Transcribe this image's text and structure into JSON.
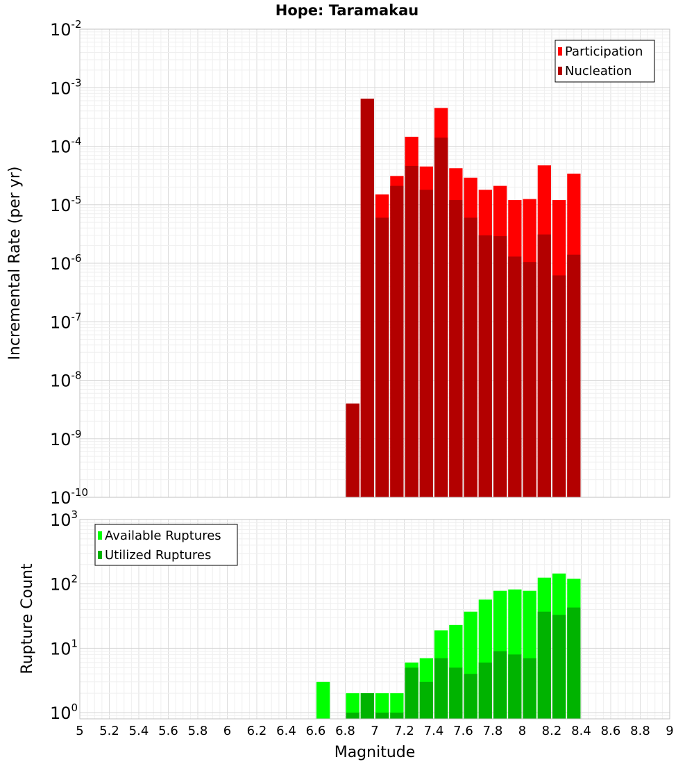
{
  "title": "Hope: Taramakau",
  "xlabel": "Magnitude",
  "x_ticks": [
    "5",
    "5.2",
    "5.4",
    "5.6",
    "5.8",
    "6",
    "6.2",
    "6.4",
    "6.6",
    "6.8",
    "7",
    "7.2",
    "7.4",
    "7.6",
    "7.8",
    "8",
    "8.2",
    "8.4",
    "8.6",
    "8.8",
    "9"
  ],
  "colors": {
    "participation": "#ff0000",
    "nucleation": "#b30000",
    "available": "#00ff00",
    "utilized": "#00b300"
  },
  "chart_data": [
    {
      "type": "bar",
      "ylabel": "Incremental Rate (per yr)",
      "yscale": "log",
      "xlim": [
        5,
        9
      ],
      "ylim": [
        1e-10,
        0.01
      ],
      "y_ticks": [
        {
          "base": "10",
          "exp": "-10"
        },
        {
          "base": "10",
          "exp": "-9"
        },
        {
          "base": "10",
          "exp": "-8"
        },
        {
          "base": "10",
          "exp": "-7"
        },
        {
          "base": "10",
          "exp": "-6"
        },
        {
          "base": "10",
          "exp": "-5"
        },
        {
          "base": "10",
          "exp": "-4"
        },
        {
          "base": "10",
          "exp": "-3"
        },
        {
          "base": "10",
          "exp": "-2"
        }
      ],
      "legend_position": "top-right",
      "x": [
        6.85,
        6.95,
        7.05,
        7.15,
        7.25,
        7.35,
        7.45,
        7.55,
        7.65,
        7.75,
        7.85,
        7.95,
        8.05,
        8.15,
        8.25,
        8.35
      ],
      "series": [
        {
          "name": "Participation",
          "values": [
            4e-09,
            0.00065,
            1.5e-05,
            3.1e-05,
            0.000145,
            4.5e-05,
            0.00045,
            4.2e-05,
            2.9e-05,
            1.8e-05,
            2.1e-05,
            1.2e-05,
            1.25e-05,
            4.7e-05,
            1.2e-05,
            3.4e-05
          ]
        },
        {
          "name": "Nucleation",
          "values": [
            4e-09,
            0.00065,
            6e-06,
            2.1e-05,
            4.6e-05,
            1.8e-05,
            0.00014,
            1.2e-05,
            6e-06,
            3e-06,
            2.9e-06,
            1.3e-06,
            1.05e-06,
            3.1e-06,
            6.2e-07,
            1.4e-06
          ]
        }
      ]
    },
    {
      "type": "bar",
      "ylabel": "Rupture Count",
      "yscale": "log",
      "xlim": [
        5,
        9
      ],
      "ylim": [
        0.8,
        1000
      ],
      "y_ticks": [
        {
          "base": "10",
          "exp": "0"
        },
        {
          "base": "10",
          "exp": "1"
        },
        {
          "base": "10",
          "exp": "2"
        },
        {
          "base": "10",
          "exp": "3"
        }
      ],
      "legend_position": "top-left",
      "x": [
        6.65,
        6.85,
        6.95,
        7.05,
        7.15,
        7.25,
        7.35,
        7.45,
        7.55,
        7.65,
        7.75,
        7.85,
        7.95,
        8.05,
        8.15,
        8.25,
        8.35
      ],
      "series": [
        {
          "name": "Available Ruptures",
          "values": [
            3,
            2,
            2,
            2,
            2,
            6,
            7,
            19,
            23,
            37,
            57,
            78,
            82,
            78,
            125,
            145,
            120
          ]
        },
        {
          "name": "Utilized Ruptures",
          "values": [
            0,
            1,
            2,
            1,
            1,
            5,
            3,
            7,
            5,
            4,
            6,
            9,
            8,
            7,
            37,
            33,
            43
          ]
        }
      ]
    }
  ]
}
